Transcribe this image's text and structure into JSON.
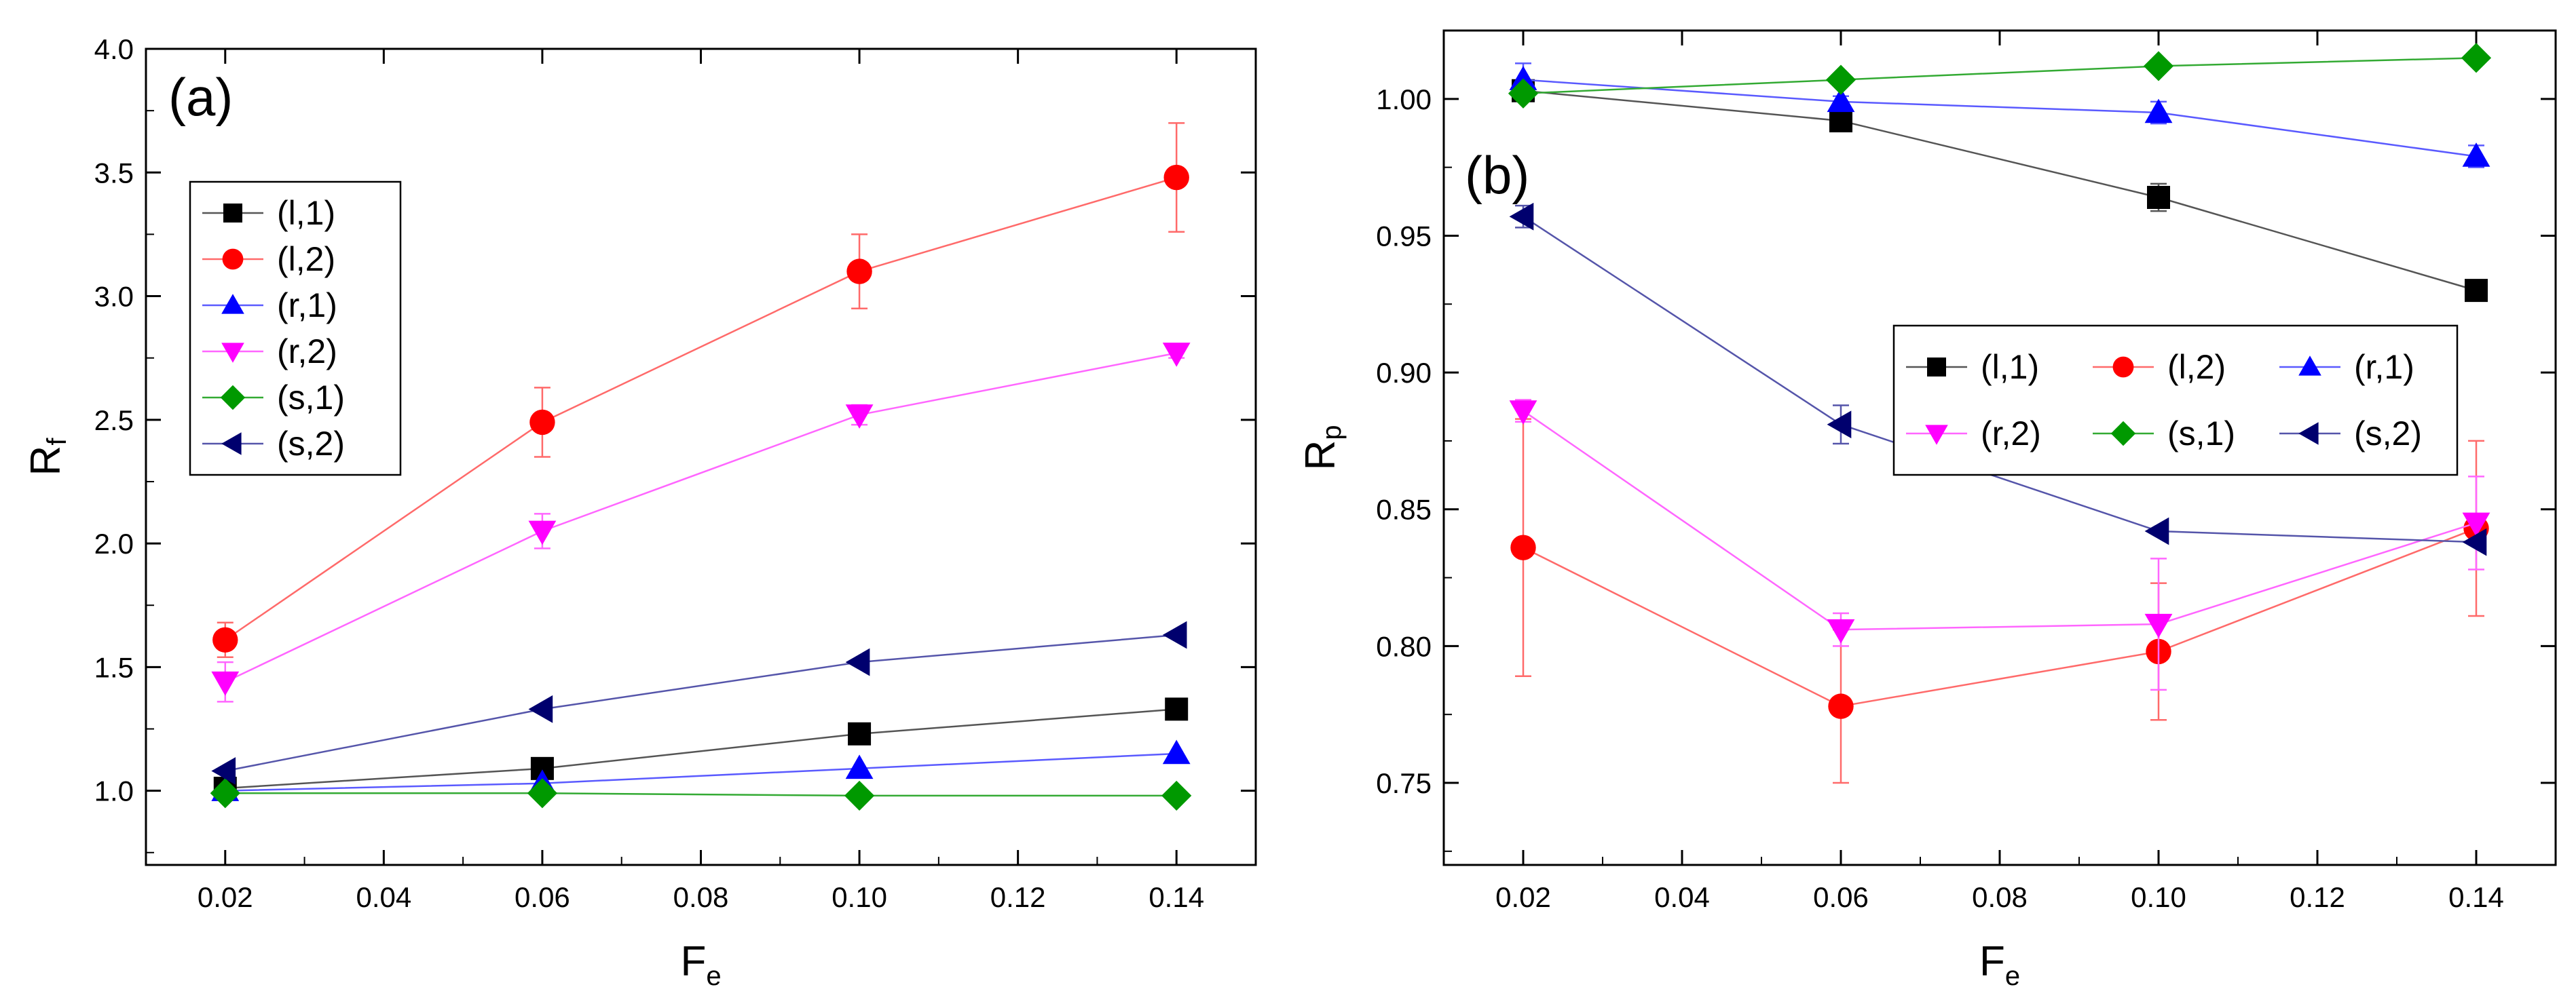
{
  "figure": {
    "description_free": true
  },
  "chart_data": [
    {
      "type": "line",
      "panel_label": "(a)",
      "title": "",
      "xlabel": "F",
      "xlabel_sub": "e",
      "ylabel": "R",
      "ylabel_sub": "f",
      "xlim": [
        0.01,
        0.15
      ],
      "ylim": [
        0.7,
        4.0
      ],
      "xticks": [
        0.02,
        0.04,
        0.06,
        0.08,
        0.1,
        0.12,
        0.14
      ],
      "xtick_labels": [
        "0.02",
        "0.04",
        "0.06",
        "0.08",
        "0.10",
        "0.12",
        "0.14"
      ],
      "yticks": [
        1.0,
        1.5,
        2.0,
        2.5,
        3.0,
        3.5,
        4.0
      ],
      "ytick_labels": [
        "1.0",
        "1.5",
        "2.0",
        "2.5",
        "3.0",
        "3.5",
        "4.0"
      ],
      "grid": false,
      "legend_position": "upper-left",
      "legend_columns": 1,
      "x": [
        0.02,
        0.06,
        0.1,
        0.14
      ],
      "series": [
        {
          "name": "(l,1)",
          "color": "#000000",
          "line_color": "#555555",
          "marker": "square",
          "values": [
            1.01,
            1.09,
            1.23,
            1.33
          ],
          "errors": [
            0,
            0,
            0,
            0
          ]
        },
        {
          "name": "(l,2)",
          "color": "#ff0000",
          "line_color": "#ff6a6a",
          "marker": "circle",
          "values": [
            1.61,
            2.49,
            3.1,
            3.48
          ],
          "errors": [
            0.07,
            0.14,
            0.15,
            0.22
          ]
        },
        {
          "name": "(r,1)",
          "color": "#0000ff",
          "line_color": "#5a5aff",
          "marker": "triangle-up",
          "values": [
            1.0,
            1.03,
            1.09,
            1.15
          ],
          "errors": [
            0,
            0,
            0,
            0
          ]
        },
        {
          "name": "(r,2)",
          "color": "#ff00ff",
          "line_color": "#ff66ff",
          "marker": "triangle-down",
          "values": [
            1.44,
            2.05,
            2.52,
            2.77
          ],
          "errors": [
            0.08,
            0.07,
            0.04,
            0.02
          ]
        },
        {
          "name": "(s,1)",
          "color": "#009900",
          "line_color": "#33aa33",
          "marker": "diamond",
          "values": [
            0.99,
            0.99,
            0.98,
            0.98
          ],
          "errors": [
            0,
            0,
            0,
            0
          ]
        },
        {
          "name": "(s,2)",
          "color": "#00006e",
          "line_color": "#5555aa",
          "marker": "triangle-left",
          "values": [
            1.08,
            1.33,
            1.52,
            1.63
          ],
          "errors": [
            0,
            0,
            0,
            0
          ]
        }
      ]
    },
    {
      "type": "line",
      "panel_label": "(b)",
      "title": "",
      "xlabel": "F",
      "xlabel_sub": "e",
      "ylabel": "R",
      "ylabel_sub": "p",
      "xlim": [
        0.01,
        0.15
      ],
      "ylim": [
        0.72,
        1.025
      ],
      "xticks": [
        0.02,
        0.04,
        0.06,
        0.08,
        0.1,
        0.12,
        0.14
      ],
      "xtick_labels": [
        "0.02",
        "0.04",
        "0.06",
        "0.08",
        "0.10",
        "0.12",
        "0.14"
      ],
      "yticks": [
        0.75,
        0.8,
        0.85,
        0.9,
        0.95,
        1.0
      ],
      "ytick_labels": [
        "0.75",
        "0.80",
        "0.85",
        "0.90",
        "0.95",
        "1.00"
      ],
      "grid": false,
      "legend_position": "center-right",
      "legend_columns": 3,
      "x": [
        0.02,
        0.06,
        0.1,
        0.14
      ],
      "series": [
        {
          "name": "(l,1)",
          "color": "#000000",
          "line_color": "#555555",
          "marker": "square",
          "values": [
            1.003,
            0.992,
            0.964,
            0.93
          ],
          "errors": [
            0,
            0.003,
            0.005,
            0
          ]
        },
        {
          "name": "(l,2)",
          "color": "#ff0000",
          "line_color": "#ff6a6a",
          "marker": "circle",
          "values": [
            0.836,
            0.778,
            0.798,
            0.843
          ],
          "errors": [
            0.047,
            0.028,
            0.025,
            0.032
          ]
        },
        {
          "name": "(r,1)",
          "color": "#0000ff",
          "line_color": "#5a5aff",
          "marker": "triangle-up",
          "values": [
            1.007,
            0.999,
            0.995,
            0.979
          ],
          "errors": [
            0.006,
            0.002,
            0.004,
            0.004
          ]
        },
        {
          "name": "(r,2)",
          "color": "#ff00ff",
          "line_color": "#ff66ff",
          "marker": "triangle-down",
          "values": [
            0.886,
            0.806,
            0.808,
            0.845
          ],
          "errors": [
            0.004,
            0.006,
            0.024,
            0.017
          ]
        },
        {
          "name": "(s,1)",
          "color": "#009900",
          "line_color": "#33aa33",
          "marker": "diamond",
          "values": [
            1.002,
            1.007,
            1.012,
            1.015
          ],
          "errors": [
            0,
            0,
            0,
            0
          ]
        },
        {
          "name": "(s,2)",
          "color": "#00006e",
          "line_color": "#5555aa",
          "marker": "triangle-left",
          "values": [
            0.957,
            0.881,
            0.842,
            0.838
          ],
          "errors": [
            0.004,
            0.007,
            0,
            0
          ]
        }
      ]
    }
  ]
}
